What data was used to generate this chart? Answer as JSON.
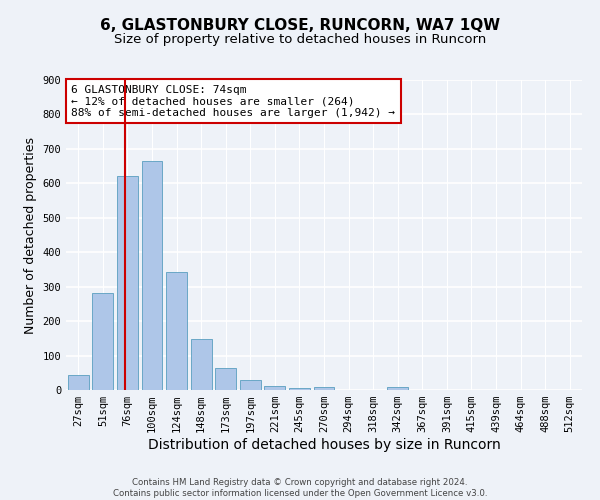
{
  "title": "6, GLASTONBURY CLOSE, RUNCORN, WA7 1QW",
  "subtitle": "Size of property relative to detached houses in Runcorn",
  "xlabel": "Distribution of detached houses by size in Runcorn",
  "ylabel": "Number of detached properties",
  "bar_labels": [
    "27sqm",
    "51sqm",
    "76sqm",
    "100sqm",
    "124sqm",
    "148sqm",
    "173sqm",
    "197sqm",
    "221sqm",
    "245sqm",
    "270sqm",
    "294sqm",
    "318sqm",
    "342sqm",
    "367sqm",
    "391sqm",
    "415sqm",
    "439sqm",
    "464sqm",
    "488sqm",
    "512sqm"
  ],
  "bar_values": [
    43,
    282,
    621,
    665,
    342,
    148,
    63,
    28,
    12,
    7,
    10,
    0,
    0,
    8,
    0,
    0,
    0,
    0,
    0,
    0,
    0
  ],
  "bar_color": "#aec6e8",
  "bar_edge_color": "#5a9fc0",
  "vline_color": "#cc0000",
  "ylim": [
    0,
    900
  ],
  "yticks": [
    0,
    100,
    200,
    300,
    400,
    500,
    600,
    700,
    800,
    900
  ],
  "annotation_box_text": "6 GLASTONBURY CLOSE: 74sqm\n← 12% of detached houses are smaller (264)\n88% of semi-detached houses are larger (1,942) →",
  "box_color": "#ffffff",
  "box_edge_color": "#cc0000",
  "footer_text": "Contains HM Land Registry data © Crown copyright and database right 2024.\nContains public sector information licensed under the Open Government Licence v3.0.",
  "bg_color": "#eef2f8",
  "grid_color": "#ffffff",
  "title_fontsize": 11,
  "subtitle_fontsize": 9.5,
  "axis_label_fontsize": 9,
  "xlabel_fontsize": 10,
  "tick_fontsize": 7.5,
  "annot_fontsize": 8
}
